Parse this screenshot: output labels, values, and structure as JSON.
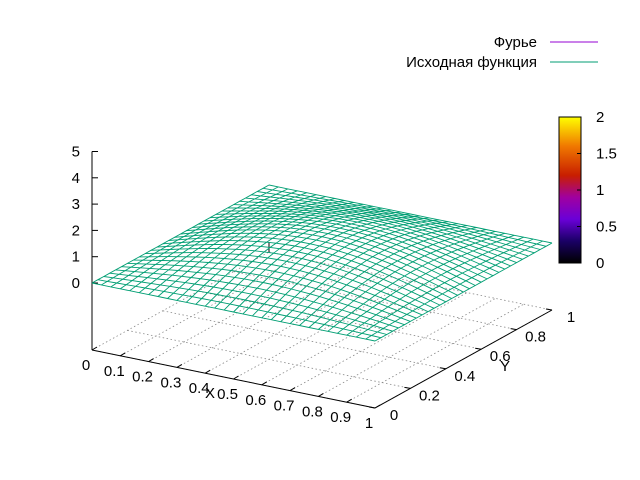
{
  "chart_data": {
    "type": "surface3d",
    "title": "",
    "xlabel": "X",
    "ylabel": "Y",
    "zlabel": "",
    "xlim": [
      0,
      1
    ],
    "ylim": [
      0,
      1
    ],
    "zlim": [
      0,
      5
    ],
    "x_ticks": [
      "0",
      "0.1",
      "0.2",
      "0.3",
      "0.4",
      "0.5",
      "0.6",
      "0.7",
      "0.8",
      "0.9",
      "1"
    ],
    "y_ticks": [
      "0",
      "0.2",
      "0.4",
      "0.6",
      "0.8",
      "1"
    ],
    "z_ticks": [
      "0",
      "1",
      "2",
      "3",
      "4",
      "5"
    ],
    "grid": true,
    "legend_position": "top-right",
    "series": [
      {
        "name": "Фурье",
        "color": "#9400d3",
        "function": "sin(pi*x)*sin(pi*y)",
        "visible_surface": false
      },
      {
        "name": "Исходная функция",
        "color": "#009e73",
        "function": "sin(pi*x)*sin(pi*y)",
        "visible_surface": true
      }
    ],
    "colorbar": {
      "ticks": [
        "0",
        "0.5",
        "1",
        "1.5",
        "2"
      ],
      "range": [
        0,
        2
      ],
      "palette": "black-blue-violet-red-orange-yellow"
    }
  }
}
